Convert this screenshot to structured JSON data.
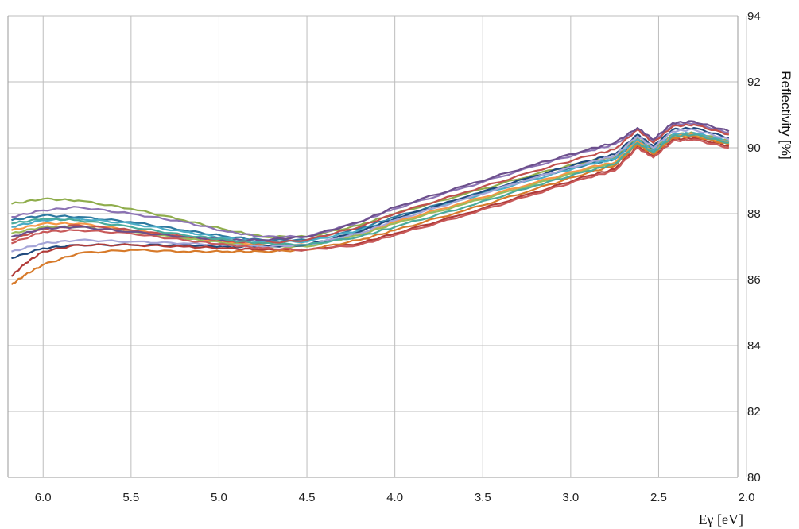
{
  "chart_data": {
    "type": "line",
    "xlabel": "Eγ [eV]",
    "ylabel": "Reflectivity [%]",
    "xlim": [
      6.2,
      2.05
    ],
    "x_reversed": true,
    "ylim": [
      80,
      94
    ],
    "xticks": [
      "6.0",
      "5.5",
      "5.0",
      "4.5",
      "4.0",
      "3.5",
      "3.0",
      "2.5",
      "2.0"
    ],
    "yticks": [
      "80",
      "82",
      "84",
      "86",
      "88",
      "90",
      "92",
      "94"
    ],
    "grid": true,
    "legend": "none",
    "series": [
      {
        "color": "#8fad4c",
        "points": [
          [
            6.18,
            88.3
          ],
          [
            6.0,
            88.45
          ],
          [
            5.8,
            88.4
          ],
          [
            5.5,
            88.15
          ],
          [
            5.2,
            87.8
          ],
          [
            4.95,
            87.5
          ],
          [
            4.75,
            87.3
          ],
          [
            4.5,
            87.3
          ],
          [
            4.2,
            87.65
          ],
          [
            4.0,
            88.0
          ],
          [
            3.6,
            88.6
          ],
          [
            3.2,
            89.2
          ],
          [
            2.9,
            89.6
          ],
          [
            2.75,
            89.7
          ],
          [
            2.62,
            90.3
          ],
          [
            2.53,
            89.95
          ],
          [
            2.42,
            90.4
          ],
          [
            2.3,
            90.45
          ],
          [
            2.1,
            90.2
          ]
        ]
      },
      {
        "color": "#8c73b4",
        "points": [
          [
            6.18,
            87.9
          ],
          [
            6.0,
            88.1
          ],
          [
            5.8,
            88.2
          ],
          [
            5.5,
            88.0
          ],
          [
            5.2,
            87.75
          ],
          [
            4.95,
            87.45
          ],
          [
            4.75,
            87.3
          ],
          [
            4.5,
            87.3
          ],
          [
            4.2,
            87.75
          ],
          [
            4.0,
            88.15
          ],
          [
            3.6,
            88.8
          ],
          [
            3.2,
            89.45
          ],
          [
            2.9,
            89.9
          ],
          [
            2.75,
            90.1
          ],
          [
            2.62,
            90.55
          ],
          [
            2.53,
            90.2
          ],
          [
            2.42,
            90.7
          ],
          [
            2.3,
            90.75
          ],
          [
            2.1,
            90.45
          ]
        ]
      },
      {
        "color": "#2e7aa0",
        "points": [
          [
            6.18,
            87.8
          ],
          [
            6.0,
            87.95
          ],
          [
            5.8,
            87.9
          ],
          [
            5.5,
            87.75
          ],
          [
            5.2,
            87.5
          ],
          [
            4.95,
            87.3
          ],
          [
            4.75,
            87.2
          ],
          [
            4.5,
            87.2
          ],
          [
            4.2,
            87.55
          ],
          [
            4.0,
            87.9
          ],
          [
            3.6,
            88.5
          ],
          [
            3.2,
            89.1
          ],
          [
            2.9,
            89.5
          ],
          [
            2.75,
            89.65
          ],
          [
            2.62,
            90.25
          ],
          [
            2.53,
            89.9
          ],
          [
            2.42,
            90.35
          ],
          [
            2.3,
            90.4
          ],
          [
            2.1,
            90.15
          ]
        ]
      },
      {
        "color": "#4bacc6",
        "points": [
          [
            6.18,
            87.6
          ],
          [
            6.0,
            87.8
          ],
          [
            5.8,
            87.85
          ],
          [
            5.5,
            87.7
          ],
          [
            5.2,
            87.45
          ],
          [
            4.95,
            87.25
          ],
          [
            4.75,
            87.15
          ],
          [
            4.5,
            87.15
          ],
          [
            4.2,
            87.5
          ],
          [
            4.0,
            87.85
          ],
          [
            3.6,
            88.45
          ],
          [
            3.2,
            89.05
          ],
          [
            2.9,
            89.5
          ],
          [
            2.75,
            89.65
          ],
          [
            2.62,
            90.25
          ],
          [
            2.53,
            89.9
          ],
          [
            2.42,
            90.4
          ],
          [
            2.3,
            90.45
          ],
          [
            2.1,
            90.2
          ]
        ]
      },
      {
        "color": "#f79646",
        "points": [
          [
            6.18,
            87.5
          ],
          [
            6.0,
            87.7
          ],
          [
            5.8,
            87.7
          ],
          [
            5.5,
            87.5
          ],
          [
            5.2,
            87.3
          ],
          [
            4.95,
            87.15
          ],
          [
            4.75,
            87.05
          ],
          [
            4.5,
            87.05
          ],
          [
            4.2,
            87.4
          ],
          [
            4.0,
            87.75
          ],
          [
            3.6,
            88.35
          ],
          [
            3.2,
            88.95
          ],
          [
            2.9,
            89.4
          ],
          [
            2.75,
            89.55
          ],
          [
            2.62,
            90.2
          ],
          [
            2.53,
            89.85
          ],
          [
            2.42,
            90.35
          ],
          [
            2.3,
            90.4
          ],
          [
            2.1,
            90.15
          ]
        ]
      },
      {
        "color": "#c0504d",
        "points": [
          [
            6.18,
            87.2
          ],
          [
            6.0,
            87.55
          ],
          [
            5.8,
            87.65
          ],
          [
            5.5,
            87.5
          ],
          [
            5.2,
            87.3
          ],
          [
            4.95,
            87.15
          ],
          [
            4.75,
            87.1
          ],
          [
            4.5,
            87.2
          ],
          [
            4.2,
            87.6
          ],
          [
            4.0,
            88.0
          ],
          [
            3.6,
            88.65
          ],
          [
            3.2,
            89.3
          ],
          [
            2.9,
            89.75
          ],
          [
            2.75,
            89.95
          ],
          [
            2.62,
            90.55
          ],
          [
            2.53,
            90.15
          ],
          [
            2.42,
            90.65
          ],
          [
            2.3,
            90.7
          ],
          [
            2.1,
            90.4
          ]
        ]
      },
      {
        "color": "#9bbb59",
        "points": [
          [
            6.18,
            87.4
          ],
          [
            6.0,
            87.6
          ],
          [
            5.8,
            87.6
          ],
          [
            5.5,
            87.45
          ],
          [
            5.2,
            87.25
          ],
          [
            4.95,
            87.1
          ],
          [
            4.75,
            87.0
          ],
          [
            4.5,
            87.0
          ],
          [
            4.2,
            87.35
          ],
          [
            4.0,
            87.7
          ],
          [
            3.6,
            88.3
          ],
          [
            3.2,
            88.9
          ],
          [
            2.9,
            89.35
          ],
          [
            2.75,
            89.5
          ],
          [
            2.62,
            90.15
          ],
          [
            2.53,
            89.8
          ],
          [
            2.42,
            90.3
          ],
          [
            2.3,
            90.35
          ],
          [
            2.1,
            90.1
          ]
        ]
      },
      {
        "color": "#1f497d",
        "points": [
          [
            6.18,
            86.65
          ],
          [
            6.0,
            86.95
          ],
          [
            5.8,
            87.05
          ],
          [
            5.5,
            87.05
          ],
          [
            5.2,
            87.05
          ],
          [
            4.95,
            87.0
          ],
          [
            4.75,
            87.0
          ],
          [
            4.5,
            87.05
          ],
          [
            4.2,
            87.45
          ],
          [
            4.0,
            87.85
          ],
          [
            3.6,
            88.5
          ],
          [
            3.2,
            89.15
          ],
          [
            2.9,
            89.6
          ],
          [
            2.75,
            89.8
          ],
          [
            2.62,
            90.4
          ],
          [
            2.53,
            90.05
          ],
          [
            2.42,
            90.55
          ],
          [
            2.3,
            90.6
          ],
          [
            2.1,
            90.3
          ]
        ]
      },
      {
        "color": "#a5a5d8",
        "points": [
          [
            6.18,
            86.85
          ],
          [
            6.0,
            87.1
          ],
          [
            5.8,
            87.2
          ],
          [
            5.5,
            87.15
          ],
          [
            5.2,
            87.1
          ],
          [
            4.95,
            87.05
          ],
          [
            4.75,
            87.0
          ],
          [
            4.5,
            87.05
          ],
          [
            4.2,
            87.4
          ],
          [
            4.0,
            87.8
          ],
          [
            3.6,
            88.45
          ],
          [
            3.2,
            89.1
          ],
          [
            2.9,
            89.55
          ],
          [
            2.75,
            89.75
          ],
          [
            2.62,
            90.35
          ],
          [
            2.53,
            90.0
          ],
          [
            2.42,
            90.5
          ],
          [
            2.3,
            90.55
          ],
          [
            2.1,
            90.25
          ]
        ]
      },
      {
        "color": "#b03a38",
        "points": [
          [
            6.18,
            86.1
          ],
          [
            6.1,
            86.5
          ],
          [
            6.0,
            86.85
          ],
          [
            5.8,
            87.05
          ],
          [
            5.5,
            87.05
          ],
          [
            5.2,
            87.0
          ],
          [
            4.95,
            86.95
          ],
          [
            4.75,
            86.9
          ],
          [
            4.5,
            86.9
          ],
          [
            4.2,
            87.1
          ],
          [
            4.0,
            87.4
          ],
          [
            3.6,
            88.0
          ],
          [
            3.2,
            88.65
          ],
          [
            2.9,
            89.15
          ],
          [
            2.75,
            89.35
          ],
          [
            2.62,
            90.05
          ],
          [
            2.53,
            89.75
          ],
          [
            2.42,
            90.25
          ],
          [
            2.3,
            90.3
          ],
          [
            2.1,
            90.05
          ]
        ]
      },
      {
        "color": "#d77a2a",
        "points": [
          [
            6.18,
            85.85
          ],
          [
            6.1,
            86.15
          ],
          [
            6.0,
            86.45
          ],
          [
            5.8,
            86.8
          ],
          [
            5.5,
            86.9
          ],
          [
            5.2,
            86.85
          ],
          [
            4.95,
            86.85
          ],
          [
            4.75,
            86.85
          ],
          [
            4.5,
            86.9
          ],
          [
            4.2,
            87.2
          ],
          [
            4.0,
            87.5
          ],
          [
            3.6,
            88.1
          ],
          [
            3.2,
            88.75
          ],
          [
            2.9,
            89.25
          ],
          [
            2.75,
            89.45
          ],
          [
            2.62,
            90.1
          ],
          [
            2.53,
            89.8
          ],
          [
            2.42,
            90.3
          ],
          [
            2.3,
            90.35
          ],
          [
            2.1,
            90.1
          ]
        ]
      },
      {
        "color": "#c85a5a",
        "points": [
          [
            6.18,
            87.1
          ],
          [
            6.0,
            87.45
          ],
          [
            5.8,
            87.5
          ],
          [
            5.5,
            87.4
          ],
          [
            5.2,
            87.2
          ],
          [
            4.95,
            87.05
          ],
          [
            4.75,
            86.95
          ],
          [
            4.5,
            86.9
          ],
          [
            4.2,
            87.05
          ],
          [
            4.0,
            87.35
          ],
          [
            3.6,
            87.95
          ],
          [
            3.2,
            88.6
          ],
          [
            2.9,
            89.1
          ],
          [
            2.75,
            89.3
          ],
          [
            2.62,
            90.0
          ],
          [
            2.53,
            89.7
          ],
          [
            2.42,
            90.2
          ],
          [
            2.3,
            90.25
          ],
          [
            2.1,
            90.0
          ]
        ]
      },
      {
        "color": "#6c4f8c",
        "points": [
          [
            6.18,
            87.3
          ],
          [
            6.0,
            87.55
          ],
          [
            5.8,
            87.6
          ],
          [
            5.5,
            87.45
          ],
          [
            5.2,
            87.3
          ],
          [
            4.95,
            87.2
          ],
          [
            4.75,
            87.2
          ],
          [
            4.5,
            87.3
          ],
          [
            4.2,
            87.75
          ],
          [
            4.0,
            88.2
          ],
          [
            3.6,
            88.85
          ],
          [
            3.2,
            89.5
          ],
          [
            2.9,
            89.95
          ],
          [
            2.75,
            90.15
          ],
          [
            2.62,
            90.6
          ],
          [
            2.53,
            90.25
          ],
          [
            2.42,
            90.75
          ],
          [
            2.3,
            90.8
          ],
          [
            2.1,
            90.5
          ]
        ]
      },
      {
        "color": "#4aaa9c",
        "points": [
          [
            6.18,
            87.7
          ],
          [
            6.0,
            87.85
          ],
          [
            5.8,
            87.8
          ],
          [
            5.5,
            87.6
          ],
          [
            5.2,
            87.35
          ],
          [
            4.95,
            87.2
          ],
          [
            4.75,
            87.1
          ],
          [
            4.5,
            87.05
          ],
          [
            4.2,
            87.3
          ],
          [
            4.0,
            87.6
          ],
          [
            3.6,
            88.2
          ],
          [
            3.2,
            88.85
          ],
          [
            2.9,
            89.3
          ],
          [
            2.75,
            89.5
          ],
          [
            2.62,
            90.15
          ],
          [
            2.53,
            89.85
          ],
          [
            2.42,
            90.35
          ],
          [
            2.3,
            90.4
          ],
          [
            2.1,
            90.15
          ]
        ]
      }
    ]
  }
}
